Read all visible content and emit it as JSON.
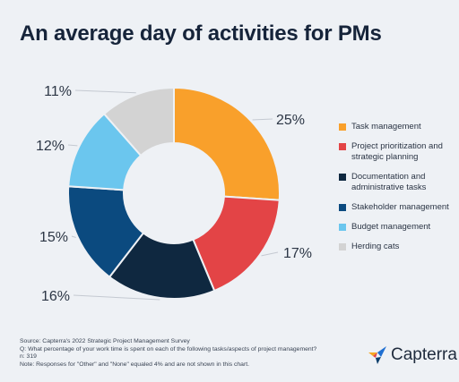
{
  "header": {
    "title": "An average day of activities for PMs"
  },
  "chart_data": {
    "type": "pie",
    "title": "An average day of activities for PMs",
    "donut": true,
    "slices": [
      {
        "label": "Task management",
        "value": 25,
        "display": "25%",
        "color": "#f9a02b"
      },
      {
        "label": "Project prioritization and strategic planning",
        "value": 17,
        "display": "17%",
        "color": "#e34446"
      },
      {
        "label": "Documentation and administrative tasks",
        "value": 16,
        "display": "16%",
        "color": "#0f2840"
      },
      {
        "label": "Stakeholder management",
        "value": 15,
        "display": "15%",
        "color": "#0b4a7f"
      },
      {
        "label": "Budget management",
        "value": 12,
        "display": "12%",
        "color": "#6bc6ee"
      },
      {
        "label": "Herding cats",
        "value": 11,
        "display": "11%",
        "color": "#d3d3d3"
      }
    ],
    "legend_position": "right"
  },
  "legend": {
    "items": [
      {
        "lines": [
          "Task management"
        ],
        "color": "#f9a02b"
      },
      {
        "lines": [
          "Project prioritization and",
          "strategic planning"
        ],
        "color": "#e34446"
      },
      {
        "lines": [
          "Documentation and",
          "administrative tasks"
        ],
        "color": "#0f2840"
      },
      {
        "lines": [
          "Stakeholder management"
        ],
        "color": "#0b4a7f"
      },
      {
        "lines": [
          "Budget management"
        ],
        "color": "#6bc6ee"
      },
      {
        "lines": [
          "Herding cats"
        ],
        "color": "#d3d3d3"
      }
    ]
  },
  "footer": {
    "source": "Source: Capterra's 2022 Strategic Project Management Survey",
    "question": "Q: What percentage of your work time is spent on each of the following tasks/aspects of project management?",
    "sample": "n: 319",
    "note": "Note: Responses for \"Other\" and \"None\" equaled 4% and are not shown in this chart."
  },
  "brand": {
    "name": "Capterra",
    "icon": "capterra-logo-icon",
    "icon_colors": [
      "#f5a623",
      "#1f6fd1",
      "#e34446",
      "#0b3d6b"
    ]
  }
}
